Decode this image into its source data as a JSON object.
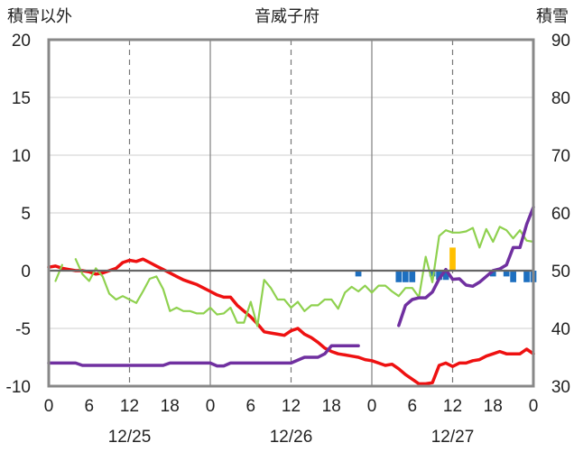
{
  "chart_data": {
    "type": "line",
    "title": "音威子府",
    "left_axis_label": "積雪以外",
    "right_axis_label": "積雪",
    "y_left": {
      "min": -10,
      "max": 20,
      "ticks": [
        20,
        15,
        10,
        5,
        0,
        -5,
        -10
      ]
    },
    "y_right": {
      "min": 30,
      "max": 90,
      "ticks": [
        90,
        80,
        70,
        60,
        50,
        40,
        30
      ]
    },
    "x_hours": {
      "min": 0,
      "max": 72
    },
    "x_ticks": [
      {
        "h": 0,
        "label": "0"
      },
      {
        "h": 6,
        "label": "6"
      },
      {
        "h": 12,
        "label": "12"
      },
      {
        "h": 18,
        "label": "18"
      },
      {
        "h": 24,
        "label": "0"
      },
      {
        "h": 30,
        "label": "6"
      },
      {
        "h": 36,
        "label": "12"
      },
      {
        "h": 42,
        "label": "18"
      },
      {
        "h": 48,
        "label": "0"
      },
      {
        "h": 54,
        "label": "6"
      },
      {
        "h": 60,
        "label": "12"
      },
      {
        "h": 66,
        "label": "18"
      },
      {
        "h": 72,
        "label": "0"
      }
    ],
    "dates": [
      {
        "h": 12,
        "label": "12/25"
      },
      {
        "h": 36,
        "label": "12/26"
      },
      {
        "h": 60,
        "label": "12/27"
      }
    ],
    "series": [
      {
        "color": "#ee1111",
        "axis": "left",
        "width": 3.5,
        "points": [
          [
            0,
            0.3
          ],
          [
            1,
            0.4
          ],
          [
            2,
            0.2
          ],
          [
            3,
            0.1
          ],
          [
            4,
            0.0
          ],
          [
            5,
            0.0
          ],
          [
            6,
            -0.1
          ],
          [
            7,
            -0.3
          ],
          [
            8,
            -0.2
          ],
          [
            9,
            0.0
          ],
          [
            10,
            0.2
          ],
          [
            11,
            0.7
          ],
          [
            12,
            0.9
          ],
          [
            13,
            0.8
          ],
          [
            14,
            1.0
          ],
          [
            15,
            0.7
          ],
          [
            16,
            0.4
          ],
          [
            17,
            0.1
          ],
          [
            18,
            -0.2
          ],
          [
            19,
            -0.5
          ],
          [
            20,
            -0.8
          ],
          [
            21,
            -1.0
          ],
          [
            22,
            -1.2
          ],
          [
            23,
            -1.5
          ],
          [
            24,
            -1.8
          ],
          [
            25,
            -2.1
          ],
          [
            26,
            -2.3
          ],
          [
            27,
            -2.3
          ],
          [
            28,
            -3.0
          ],
          [
            29,
            -3.5
          ],
          [
            30,
            -4.0
          ],
          [
            31,
            -4.6
          ],
          [
            32,
            -5.3
          ],
          [
            33,
            -5.4
          ],
          [
            34,
            -5.5
          ],
          [
            35,
            -5.6
          ],
          [
            36,
            -5.2
          ],
          [
            37,
            -5.0
          ],
          [
            38,
            -5.5
          ],
          [
            39,
            -5.8
          ],
          [
            40,
            -6.2
          ],
          [
            41,
            -6.7
          ],
          [
            42,
            -7.0
          ],
          [
            43,
            -7.2
          ],
          [
            44,
            -7.3
          ],
          [
            45,
            -7.4
          ],
          [
            46,
            -7.5
          ],
          [
            47,
            -7.7
          ],
          [
            48,
            -7.8
          ],
          [
            49,
            -8.0
          ],
          [
            50,
            -8.2
          ],
          [
            51,
            -8.1
          ],
          [
            52,
            -8.5
          ],
          [
            53,
            -9.0
          ],
          [
            54,
            -9.4
          ],
          [
            55,
            -9.8
          ],
          [
            56,
            -9.8
          ],
          [
            57,
            -9.7
          ],
          [
            58,
            -8.2
          ],
          [
            59,
            -8.0
          ],
          [
            60,
            -8.3
          ],
          [
            61,
            -8.0
          ],
          [
            62,
            -8.0
          ],
          [
            63,
            -7.8
          ],
          [
            64,
            -7.7
          ],
          [
            65,
            -7.4
          ],
          [
            66,
            -7.2
          ],
          [
            67,
            -7.0
          ],
          [
            68,
            -7.2
          ],
          [
            69,
            -7.2
          ],
          [
            70,
            -7.2
          ],
          [
            71,
            -6.8
          ],
          [
            72,
            -7.2
          ]
        ]
      },
      {
        "color": "#8fd14f",
        "axis": "left",
        "width": 2.2,
        "segments": [
          [
            [
              1,
              -0.9
            ],
            [
              2,
              0.5
            ]
          ],
          [
            [
              4,
              1.0
            ],
            [
              5,
              -0.3
            ],
            [
              6,
              -0.9
            ],
            [
              7,
              0.2
            ],
            [
              8,
              -0.5
            ],
            [
              9,
              -2.0
            ],
            [
              10,
              -2.5
            ],
            [
              11,
              -2.2
            ],
            [
              12,
              -2.5
            ],
            [
              13,
              -2.8
            ],
            [
              14,
              -1.8
            ],
            [
              15,
              -0.7
            ],
            [
              16,
              -0.5
            ],
            [
              17,
              -1.6
            ],
            [
              18,
              -3.5
            ],
            [
              19,
              -3.2
            ],
            [
              20,
              -3.5
            ],
            [
              21,
              -3.5
            ],
            [
              22,
              -3.7
            ],
            [
              23,
              -3.7
            ],
            [
              24,
              -3.2
            ],
            [
              25,
              -3.8
            ],
            [
              26,
              -3.7
            ],
            [
              27,
              -3.2
            ],
            [
              28,
              -4.5
            ],
            [
              29,
              -4.5
            ],
            [
              30,
              -2.7
            ],
            [
              31,
              -4.8
            ],
            [
              32,
              -0.8
            ],
            [
              33,
              -1.5
            ],
            [
              34,
              -2.5
            ],
            [
              35,
              -2.5
            ],
            [
              36,
              -3.2
            ],
            [
              37,
              -2.7
            ],
            [
              38,
              -3.5
            ],
            [
              39,
              -3.0
            ],
            [
              40,
              -3.0
            ],
            [
              41,
              -2.5
            ],
            [
              42,
              -2.5
            ],
            [
              43,
              -3.3
            ],
            [
              44,
              -1.9
            ],
            [
              45,
              -1.4
            ],
            [
              46,
              -1.8
            ],
            [
              47,
              -1.3
            ],
            [
              48,
              -1.9
            ],
            [
              49,
              -1.3
            ],
            [
              50,
              -1.3
            ],
            [
              51,
              -1.8
            ],
            [
              52,
              -2.2
            ],
            [
              53,
              -1.5
            ],
            [
              54,
              -1.5
            ],
            [
              55,
              -2.3
            ],
            [
              56,
              1.2
            ],
            [
              57,
              -1.0
            ],
            [
              58,
              3.0
            ],
            [
              59,
              3.5
            ],
            [
              60,
              3.3
            ],
            [
              61,
              3.3
            ],
            [
              62,
              3.4
            ],
            [
              63,
              3.7
            ],
            [
              64,
              2.0
            ],
            [
              65,
              3.6
            ],
            [
              66,
              2.5
            ],
            [
              67,
              3.8
            ],
            [
              68,
              3.5
            ],
            [
              69,
              2.8
            ],
            [
              70,
              3.5
            ],
            [
              71,
              2.6
            ],
            [
              72,
              2.5
            ]
          ]
        ]
      },
      {
        "color": "#7030a0",
        "axis": "right",
        "width": 3.5,
        "segments": [
          [
            [
              0,
              34
            ],
            [
              2,
              34
            ],
            [
              4,
              34
            ],
            [
              5,
              33.6
            ],
            [
              8,
              33.6
            ],
            [
              12,
              33.6
            ],
            [
              17,
              33.6
            ],
            [
              18,
              34
            ],
            [
              24,
              34
            ],
            [
              25,
              33.5
            ],
            [
              26,
              33.5
            ],
            [
              27,
              34
            ],
            [
              30,
              34
            ],
            [
              36,
              34
            ],
            [
              38,
              35
            ],
            [
              40,
              35
            ],
            [
              41,
              35.6
            ],
            [
              42,
              37
            ],
            [
              46,
              37
            ]
          ],
          [
            [
              52,
              40.5
            ],
            [
              53,
              44
            ],
            [
              54,
              45
            ],
            [
              55,
              45.3
            ],
            [
              56,
              45.3
            ],
            [
              57,
              46.3
            ],
            [
              58,
              48.6
            ],
            [
              59,
              50.2
            ],
            [
              60,
              48.5
            ],
            [
              61,
              48.6
            ],
            [
              62,
              47.5
            ],
            [
              63,
              47.3
            ],
            [
              64,
              48
            ],
            [
              65,
              49
            ],
            [
              66,
              50
            ],
            [
              67,
              50.3
            ],
            [
              68,
              51
            ],
            [
              69,
              54
            ],
            [
              70,
              54
            ],
            [
              71,
              58
            ],
            [
              72,
              61
            ]
          ]
        ]
      }
    ],
    "bars": [
      {
        "h": 46,
        "value": -0.5,
        "color": "#1e6fbf"
      },
      {
        "h": 52,
        "value": -1.0,
        "color": "#1e6fbf"
      },
      {
        "h": 53,
        "value": -1.0,
        "color": "#1e6fbf"
      },
      {
        "h": 54,
        "value": -1.0,
        "color": "#1e6fbf"
      },
      {
        "h": 57,
        "value": -0.5,
        "color": "#1e6fbf"
      },
      {
        "h": 58,
        "value": -0.8,
        "color": "#1e6fbf"
      },
      {
        "h": 59,
        "value": -0.8,
        "color": "#1e6fbf"
      },
      {
        "h": 60,
        "value": 2.0,
        "color": "#ffc000"
      },
      {
        "h": 66,
        "value": -0.5,
        "color": "#1e6fbf"
      },
      {
        "h": 68,
        "value": -0.5,
        "color": "#1e6fbf"
      },
      {
        "h": 69,
        "value": -1.0,
        "color": "#1e6fbf"
      },
      {
        "h": 71,
        "value": -1.0,
        "color": "#1e6fbf"
      },
      {
        "h": 72,
        "value": -1.0,
        "color": "#1e6fbf"
      }
    ]
  }
}
